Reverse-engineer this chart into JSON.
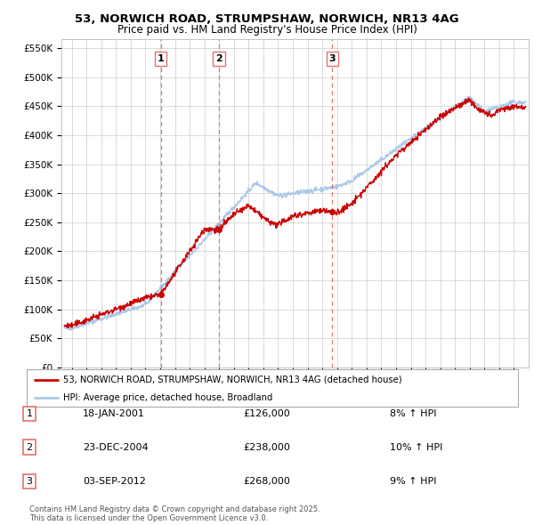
{
  "title_line1": "53, NORWICH ROAD, STRUMPSHAW, NORWICH, NR13 4AG",
  "title_line2": "Price paid vs. HM Land Registry's House Price Index (HPI)",
  "ylabel_ticks": [
    "£0",
    "£50K",
    "£100K",
    "£150K",
    "£200K",
    "£250K",
    "£300K",
    "£350K",
    "£400K",
    "£450K",
    "£500K",
    "£550K"
  ],
  "ytick_values": [
    0,
    50000,
    100000,
    150000,
    200000,
    250000,
    300000,
    350000,
    400000,
    450000,
    500000,
    550000
  ],
  "ylim": [
    0,
    565000
  ],
  "legend_line1": "53, NORWICH ROAD, STRUMPSHAW, NORWICH, NR13 4AG (detached house)",
  "legend_line2": "HPI: Average price, detached house, Broadland",
  "sale_color": "#cc0000",
  "hpi_color": "#aac8e8",
  "transactions": [
    {
      "num": 1,
      "date": "18-JAN-2001",
      "price": 126000,
      "hpi_pct": "8%",
      "x_year": 2001.05
    },
    {
      "num": 2,
      "date": "23-DEC-2004",
      "price": 238000,
      "hpi_pct": "10%",
      "x_year": 2004.98
    },
    {
      "num": 3,
      "date": "03-SEP-2012",
      "price": 268000,
      "hpi_pct": "9%",
      "x_year": 2012.67
    }
  ],
  "vline_color": "#e87070",
  "footer": "Contains HM Land Registry data © Crown copyright and database right 2025.\nThis data is licensed under the Open Government Licence v3.0.",
  "background_color": "#ffffff",
  "grid_color": "#cccccc",
  "xlim_left": 1994.3,
  "xlim_right": 2026.0
}
